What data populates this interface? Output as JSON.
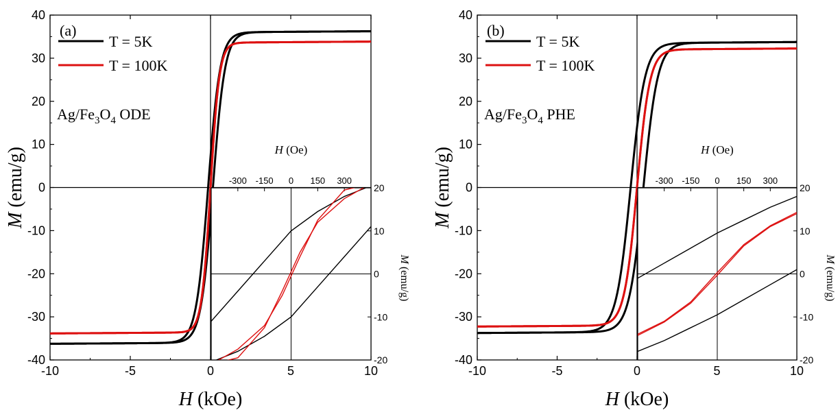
{
  "chart_data": [
    {
      "type": "line",
      "panel_label": "(a)",
      "sample": {
        "main": "Ag/Fe",
        "sub1": "3",
        "mid": "O",
        "sub2": "4",
        "tail": " ODE"
      },
      "xlabel": {
        "var": "H",
        "unit": " (kOe)"
      },
      "ylabel": {
        "var": "M",
        "unit": " (emu/g)"
      },
      "xlim": [
        -10,
        10
      ],
      "ylim": [
        -40,
        40
      ],
      "xticks": [
        -10,
        -5,
        0,
        5,
        10
      ],
      "yticks": [
        -40,
        -30,
        -20,
        -10,
        0,
        10,
        20,
        30,
        40
      ],
      "series": [
        {
          "name": "T = 5K",
          "color": "#000000",
          "ms": 36.0,
          "hc": 0.15,
          "w": 0.75
        },
        {
          "name": "T = 100K",
          "color": "#dd1111",
          "ms": 33.6,
          "hc": 0.0,
          "w": 0.55
        }
      ],
      "inset": {
        "xlabel": {
          "var": "H",
          "unit": " (Oe)"
        },
        "ylabel": {
          "var": "M",
          "unit": " (emu/g)"
        },
        "xlim": [
          -450,
          450
        ],
        "ylim": [
          -20,
          20
        ],
        "xticks": [
          -300,
          -150,
          0,
          150,
          300
        ],
        "yticks": [
          -20,
          -10,
          0,
          10,
          20
        ],
        "series": [
          {
            "name": "T = 5K",
            "color": "#000000",
            "branches": [
              {
                "x": [
                  -450,
                  -300,
                  -150,
                  0,
                  150,
                  300,
                  450
                ],
                "y": [
                  -11.0,
                  -4.0,
                  3.0,
                  10.0,
                  14.5,
                  18.0,
                  20.5
                ]
              },
              {
                "x": [
                  -450,
                  -300,
                  -150,
                  0,
                  150,
                  300,
                  450
                ],
                "y": [
                  -20.5,
                  -18.0,
                  -14.5,
                  -10.0,
                  -3.0,
                  4.0,
                  11.0
                ]
              }
            ]
          },
          {
            "name": "T = 100K",
            "color": "#dd1111",
            "branches": [
              {
                "x": [
                  -450,
                  -300,
                  -150,
                  -50,
                  0,
                  50,
                  150,
                  300,
                  450
                ],
                "y": [
                  -21.0,
                  -19.5,
                  -12.5,
                  -4.0,
                  0.5,
                  5.0,
                  12.0,
                  17.5,
                  21.0
                ]
              },
              {
                "x": [
                  -450,
                  -300,
                  -150,
                  -50,
                  0,
                  50,
                  150,
                  300,
                  450
                ],
                "y": [
                  -21.0,
                  -17.5,
                  -12.0,
                  -5.0,
                  -0.5,
                  4.0,
                  12.5,
                  19.5,
                  21.0
                ]
              }
            ]
          }
        ]
      }
    },
    {
      "type": "line",
      "panel_label": "(b)",
      "sample": {
        "main": "Ag/Fe",
        "sub1": "3",
        "mid": "O",
        "sub2": "4",
        "tail": " PHE"
      },
      "xlabel": {
        "var": "H",
        "unit": " (kOe)"
      },
      "ylabel": {
        "var": "M",
        "unit": " (emu/g)"
      },
      "xlim": [
        -10,
        10
      ],
      "ylim": [
        -40,
        40
      ],
      "xticks": [
        -10,
        -5,
        0,
        5,
        10
      ],
      "yticks": [
        -40,
        -30,
        -20,
        -10,
        0,
        10,
        20,
        30,
        40
      ],
      "series": [
        {
          "name": "T = 5K",
          "color": "#000000",
          "ms": 33.5,
          "hc": 0.4,
          "w": 0.9
        },
        {
          "name": "T = 100K",
          "color": "#dd1111",
          "ms": 32.0,
          "hc": 0.0,
          "w": 0.8
        }
      ],
      "inset": {
        "xlabel": {
          "var": "H",
          "unit": " (Oe)"
        },
        "ylabel": {
          "var": "M",
          "unit": " (emu/g)"
        },
        "xlim": [
          -450,
          450
        ],
        "ylim": [
          -20,
          20
        ],
        "xticks": [
          -300,
          -150,
          0,
          150,
          300
        ],
        "yticks": [
          -20,
          -10,
          0,
          10,
          20
        ],
        "series": [
          {
            "name": "T = 5K",
            "color": "#000000",
            "branches": [
              {
                "x": [
                  -450,
                  -300,
                  -150,
                  0,
                  150,
                  300,
                  450
                ],
                "y": [
                  -1.0,
                  2.5,
                  6.0,
                  9.5,
                  12.5,
                  15.5,
                  18.0
                ]
              },
              {
                "x": [
                  -450,
                  -300,
                  -150,
                  0,
                  150,
                  300,
                  450
                ],
                "y": [
                  -18.0,
                  -15.5,
                  -12.5,
                  -9.5,
                  -6.0,
                  -2.5,
                  1.0
                ]
              }
            ]
          },
          {
            "name": "T = 100K",
            "color": "#dd1111",
            "branches": [
              {
                "x": [
                  -450,
                  -300,
                  -150,
                  0,
                  150,
                  300,
                  450
                ],
                "y": [
                  -14.0,
                  -11.0,
                  -6.5,
                  0.3,
                  6.8,
                  11.2,
                  14.3
                ]
              },
              {
                "x": [
                  -450,
                  -300,
                  -150,
                  0,
                  150,
                  300,
                  450
                ],
                "y": [
                  -14.3,
                  -11.2,
                  -6.8,
                  -0.3,
                  6.5,
                  11.0,
                  14.0
                ]
              }
            ]
          }
        ]
      }
    }
  ]
}
